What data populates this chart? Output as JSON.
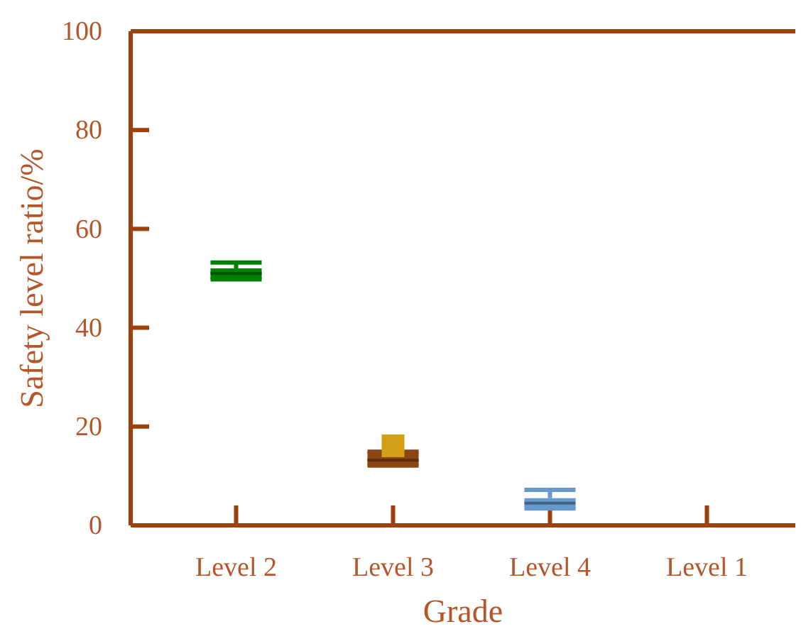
{
  "chart_data": {
    "type": "box",
    "xlabel": "Grade",
    "ylabel": "Safety level ratio/%",
    "categories": [
      "Level 2",
      "Level 3",
      "Level 4",
      "Level 1"
    ],
    "colors": [
      "#008000",
      "#8b4513",
      "#6699cc",
      null
    ],
    "boxes": [
      {
        "low": 49.8,
        "q1": 49.8,
        "median": 51,
        "q3": 52,
        "high": 53.2
      },
      {
        "low": 12.1,
        "q1": 12.1,
        "median": 13.2,
        "q3": 14.9,
        "high": 14.9,
        "mean": 16.1
      },
      {
        "low": 3.4,
        "q1": 3.4,
        "median": 4.5,
        "q3": 5.5,
        "high": 7.2
      },
      null
    ],
    "ylim": [
      0,
      100
    ],
    "yticks": [
      0,
      20,
      40,
      60,
      80,
      100
    ],
    "grid": false
  }
}
